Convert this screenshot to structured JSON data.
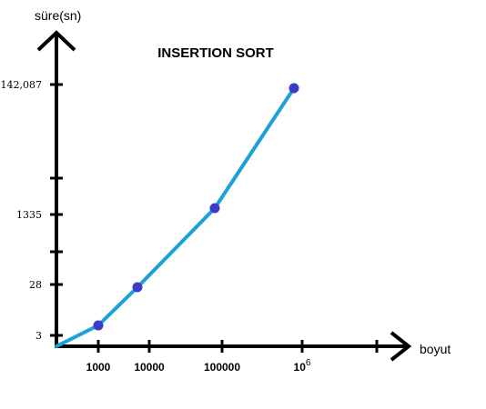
{
  "chart_data": {
    "type": "line",
    "title": "INSERTION SORT",
    "xlabel": "boyut",
    "ylabel": "süre(sn)",
    "grid": false,
    "legend": "none",
    "line_color": "#1ba0d8",
    "point_color": "#3b3bc9",
    "axis_color": "#000000",
    "x_ticks": [
      {
        "label": "1000",
        "sup": ""
      },
      {
        "label": "10000",
        "sup": ""
      },
      {
        "label": "100000",
        "sup": ""
      },
      {
        "label": "10",
        "sup": "6"
      },
      {
        "label": "",
        "sup": ""
      }
    ],
    "y_ticks": [
      "3",
      "28",
      "",
      "1335",
      "",
      "142,087"
    ],
    "points": [
      {
        "x": "1000",
        "y": 3
      },
      {
        "x": "10000",
        "y": 28
      },
      {
        "x": "100000",
        "y": 1335
      },
      {
        "x": "10^6",
        "y": 142087
      }
    ]
  }
}
